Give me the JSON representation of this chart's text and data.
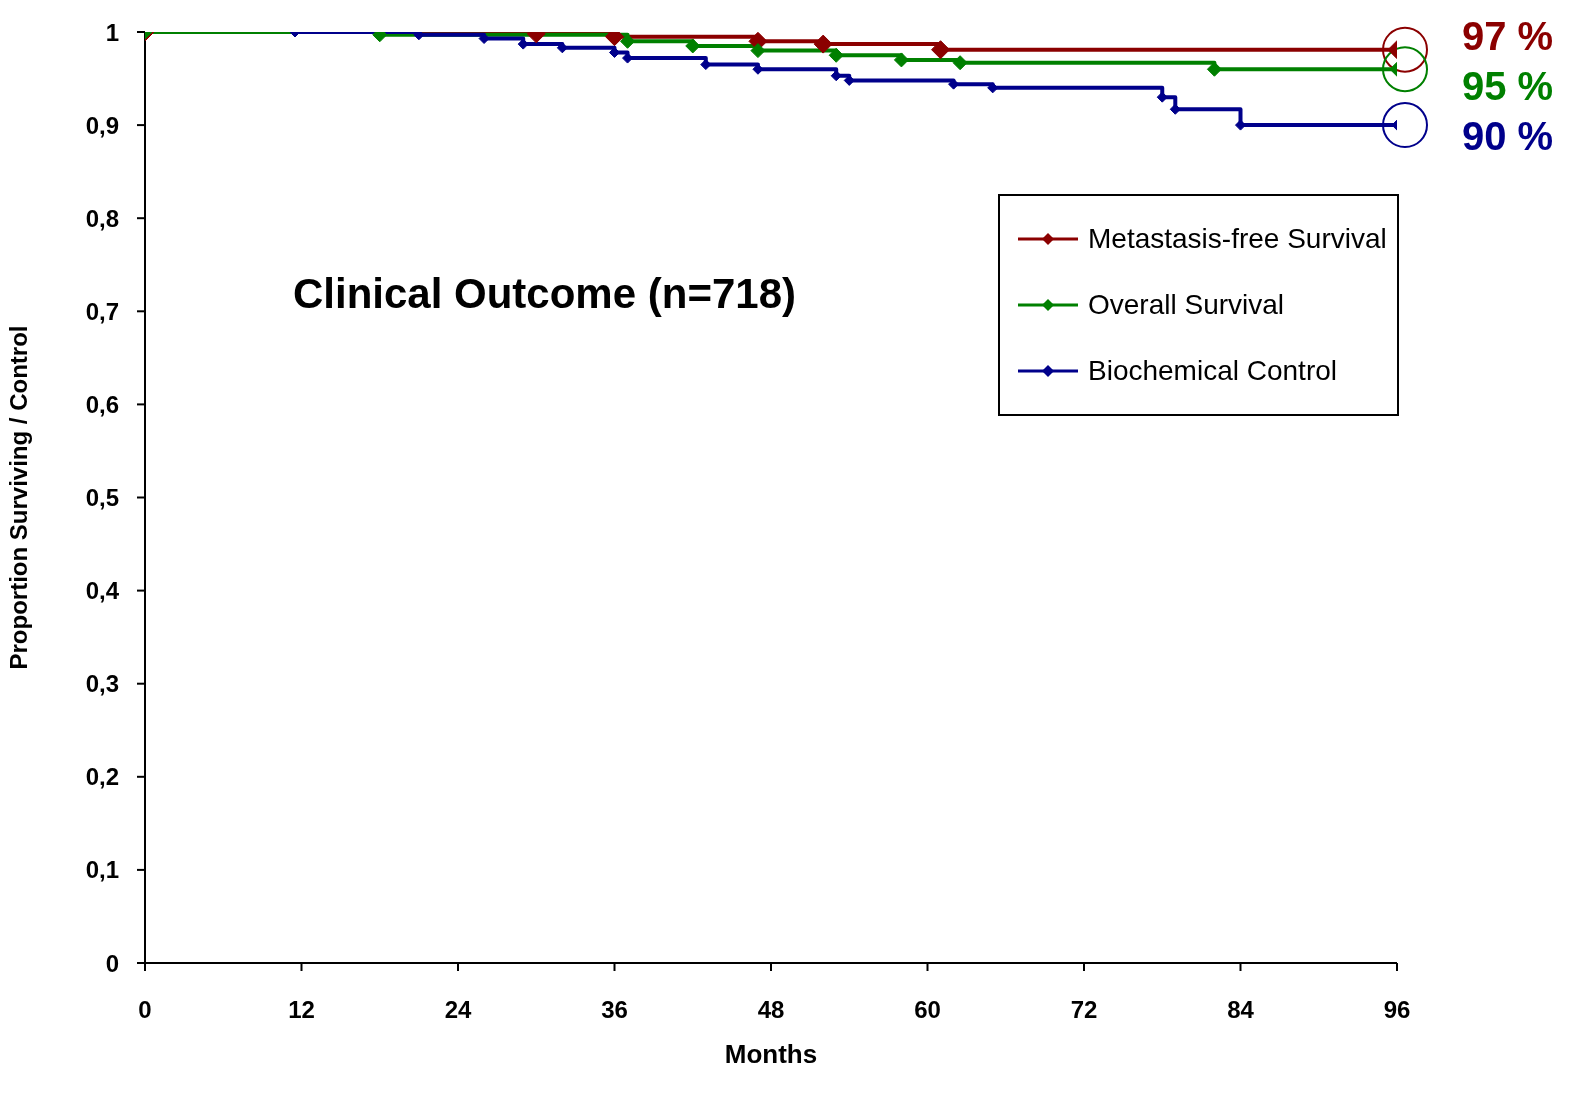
{
  "chart_data": {
    "type": "step",
    "title": "Clinical Outcome (n=718)",
    "xlabel": "Months",
    "ylabel": "Proportion Surviving / Control",
    "xlim": [
      0,
      96
    ],
    "xticks": [
      0,
      12,
      24,
      36,
      48,
      60,
      72,
      84,
      96
    ],
    "ylim": [
      0,
      1
    ],
    "yticks": [
      {
        "value": 0,
        "label": "0"
      },
      {
        "value": 0.1,
        "label": "0,1"
      },
      {
        "value": 0.2,
        "label": "0,2"
      },
      {
        "value": 0.3,
        "label": "0,3"
      },
      {
        "value": 0.4,
        "label": "0,4"
      },
      {
        "value": 0.5,
        "label": "0,5"
      },
      {
        "value": 0.6,
        "label": "0,6"
      },
      {
        "value": 0.7,
        "label": "0,7"
      },
      {
        "value": 0.8,
        "label": "0,8"
      },
      {
        "value": 0.9,
        "label": "0,9"
      },
      {
        "value": 1,
        "label": "1"
      }
    ],
    "grid": false,
    "legend": "top right",
    "marker": "diamond",
    "line_style": "solid",
    "series": [
      {
        "name": "Metastasis-free Survival",
        "color": "#8b0000",
        "x": [
          0,
          30,
          36,
          47,
          52,
          61,
          96
        ],
        "values": [
          1,
          0.998,
          0.995,
          0.99,
          0.987,
          0.981,
          0.981
        ]
      },
      {
        "name": "Overall Survival",
        "color": "#008000",
        "x": [
          0,
          18,
          37,
          42,
          47,
          53,
          58,
          62.5,
          82,
          96
        ],
        "values": [
          1,
          0.997,
          0.99,
          0.985,
          0.98,
          0.975,
          0.97,
          0.967,
          0.96,
          0.96
        ]
      },
      {
        "name": "Biochemical Control",
        "color": "#00008b",
        "x": [
          11.5,
          21,
          26,
          29,
          32,
          36,
          37,
          43,
          47,
          53,
          54,
          62,
          65,
          78,
          79,
          84,
          96
        ],
        "values": [
          1,
          0.997,
          0.993,
          0.987,
          0.983,
          0.978,
          0.972,
          0.965,
          0.96,
          0.953,
          0.948,
          0.944,
          0.94,
          0.93,
          0.917,
          0.9,
          0.9
        ]
      }
    ],
    "annotations": [
      "97 %",
      "95 %",
      "90 %"
    ]
  }
}
